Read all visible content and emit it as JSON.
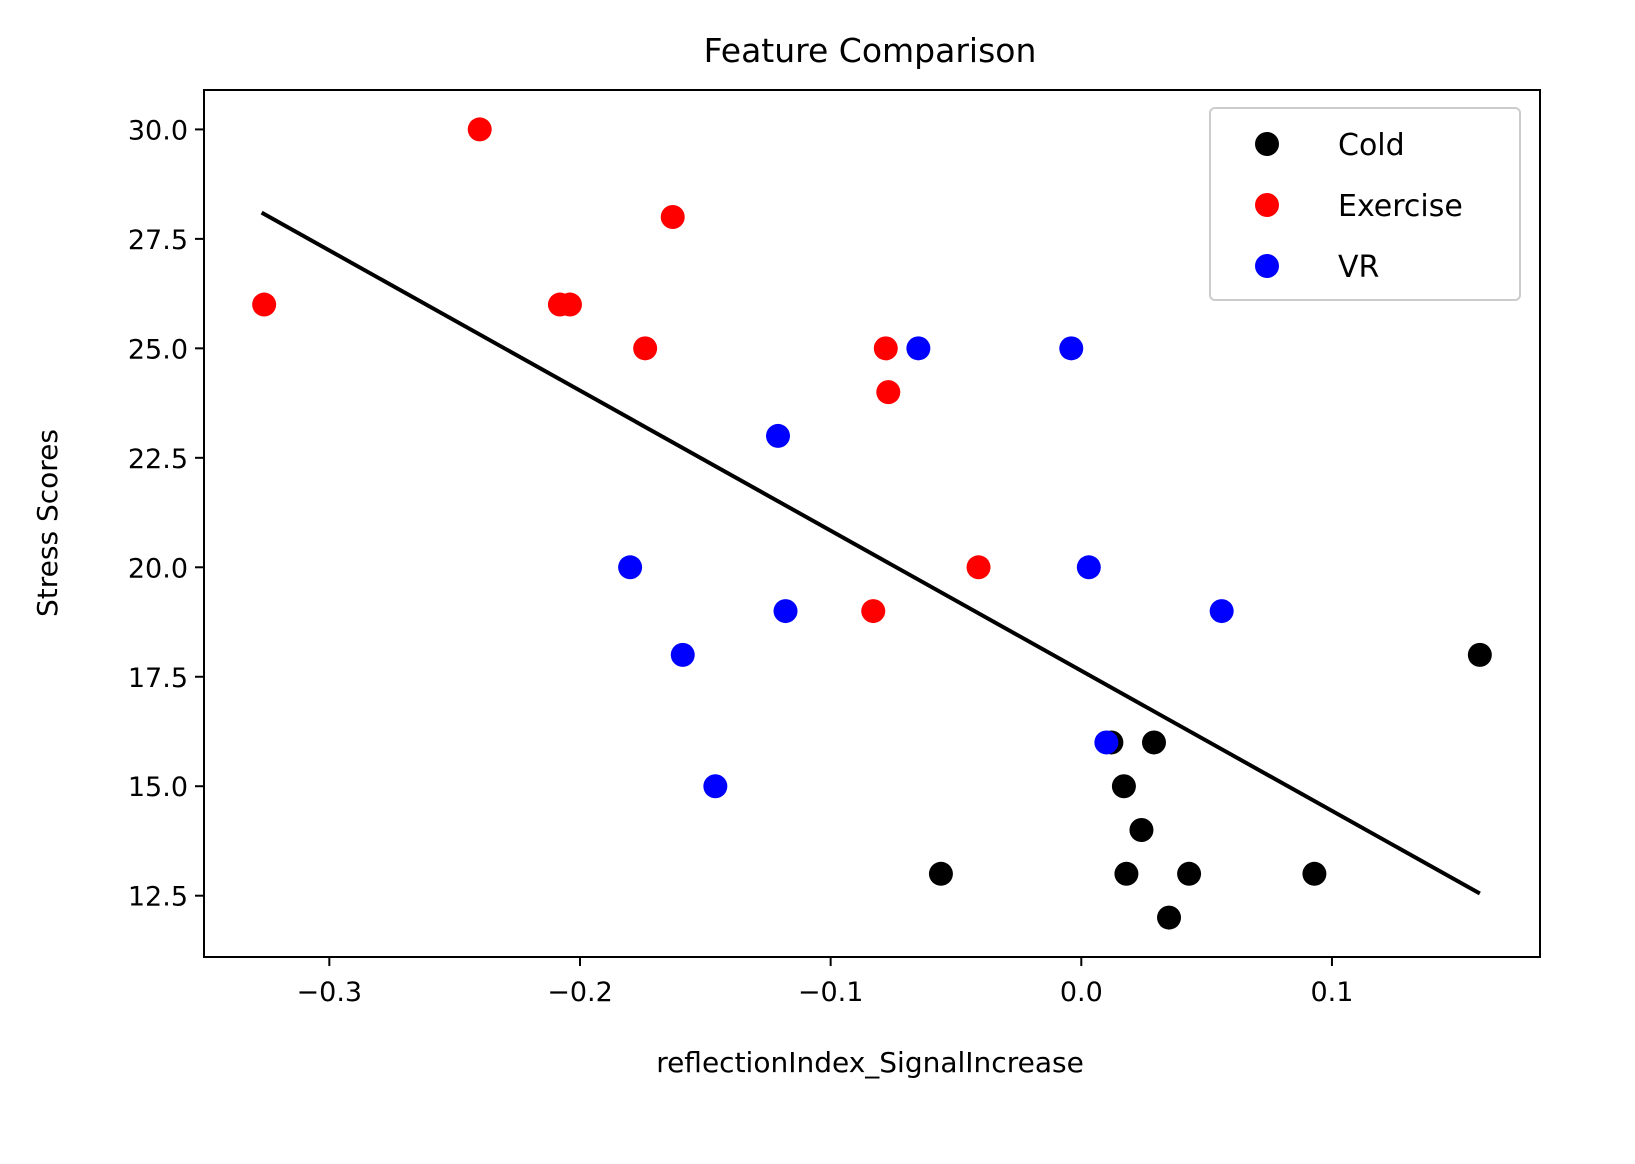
{
  "chart_data": {
    "type": "scatter",
    "title": "Feature Comparison",
    "xlabel": "reflectionIndex_SignalIncrease",
    "ylabel": "Stress Scores",
    "xlim": [
      -0.35,
      0.183
    ],
    "ylim": [
      11.1,
      30.9
    ],
    "x_ticks": [
      -0.3,
      -0.2,
      -0.1,
      0.0,
      0.1
    ],
    "x_tick_labels": [
      "−0.3",
      "−0.2",
      "−0.1",
      "0.0",
      "0.1"
    ],
    "y_ticks": [
      12.5,
      15.0,
      17.5,
      20.0,
      22.5,
      25.0,
      27.5,
      30.0
    ],
    "y_tick_labels": [
      "12.5",
      "15.0",
      "17.5",
      "20.0",
      "22.5",
      "25.0",
      "27.5",
      "30.0"
    ],
    "grid": false,
    "legend_position": "top-right",
    "series": [
      {
        "name": "Cold",
        "color": "#000000",
        "points": [
          [
            -0.056,
            13
          ],
          [
            0.012,
            16
          ],
          [
            0.029,
            16
          ],
          [
            0.017,
            15
          ],
          [
            0.024,
            14
          ],
          [
            0.018,
            13
          ],
          [
            0.035,
            12
          ],
          [
            0.043,
            13
          ],
          [
            0.093,
            13
          ],
          [
            0.159,
            18
          ]
        ]
      },
      {
        "name": "Exercise",
        "color": "#ff0000",
        "points": [
          [
            -0.326,
            26
          ],
          [
            -0.24,
            30
          ],
          [
            -0.163,
            28
          ],
          [
            -0.208,
            26
          ],
          [
            -0.204,
            26
          ],
          [
            -0.174,
            25
          ],
          [
            -0.078,
            25
          ],
          [
            -0.077,
            24
          ],
          [
            -0.041,
            20
          ],
          [
            -0.083,
            19
          ]
        ]
      },
      {
        "name": "VR",
        "color": "#0000ff",
        "points": [
          [
            -0.065,
            25
          ],
          [
            -0.004,
            25
          ],
          [
            -0.121,
            23
          ],
          [
            -0.18,
            20
          ],
          [
            0.003,
            20
          ],
          [
            -0.118,
            19
          ],
          [
            0.056,
            19
          ],
          [
            -0.159,
            18
          ],
          [
            -0.146,
            15
          ],
          [
            0.01,
            16
          ]
        ]
      }
    ],
    "fit_line": {
      "color": "#000000",
      "points": [
        [
          -0.327,
          28.1
        ],
        [
          0.159,
          12.55
        ]
      ]
    }
  }
}
